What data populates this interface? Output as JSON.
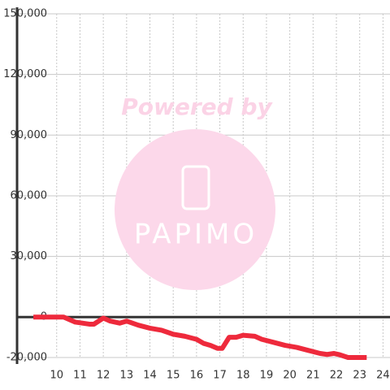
{
  "chart_data": {
    "type": "line",
    "watermark": {
      "top": "Powered by",
      "bottom": "PAPIMO"
    },
    "x": [
      9.0,
      10.3,
      10.5,
      10.8,
      11.4,
      11.6,
      12.0,
      12.3,
      12.7,
      13.0,
      13.5,
      14.0,
      14.5,
      15.0,
      15.5,
      16.0,
      16.3,
      16.6,
      16.9,
      17.1,
      17.4,
      17.7,
      18.0,
      18.5,
      18.8,
      19.3,
      19.8,
      20.3,
      20.8,
      21.3,
      21.6,
      21.9,
      22.1,
      22.5,
      23.3
    ],
    "series": [
      {
        "color": "#ee2a3c",
        "values": [
          0,
          0,
          -1000,
          -2500,
          -3500,
          -3500,
          -500,
          -2000,
          -3000,
          -2000,
          -4000,
          -5500,
          -6500,
          -8500,
          -9500,
          -11000,
          -13000,
          -14000,
          -15500,
          -15500,
          -10000,
          -10000,
          -9000,
          -9500,
          -11000,
          -12500,
          -14000,
          -15000,
          -16500,
          -18000,
          -18500,
          -18000,
          -18500,
          -20000,
          -20000
        ]
      }
    ],
    "xlim": [
      8.3,
      24.3
    ],
    "xticks": [
      10,
      11,
      12,
      13,
      14,
      15,
      16,
      17,
      18,
      19,
      20,
      21,
      22,
      23,
      24
    ],
    "ylim": [
      -20000,
      150000
    ],
    "yticks": [
      {
        "value": -20000,
        "label": "-20,000"
      },
      0,
      {
        "value": 30000,
        "label": "30,000"
      },
      {
        "value": 60000,
        "label": "60,000"
      },
      {
        "value": 90000,
        "label": "90,000"
      },
      {
        "value": 120000,
        "label": "120,000"
      },
      {
        "value": 150000,
        "label": "150,000"
      }
    ],
    "grid": true
  }
}
